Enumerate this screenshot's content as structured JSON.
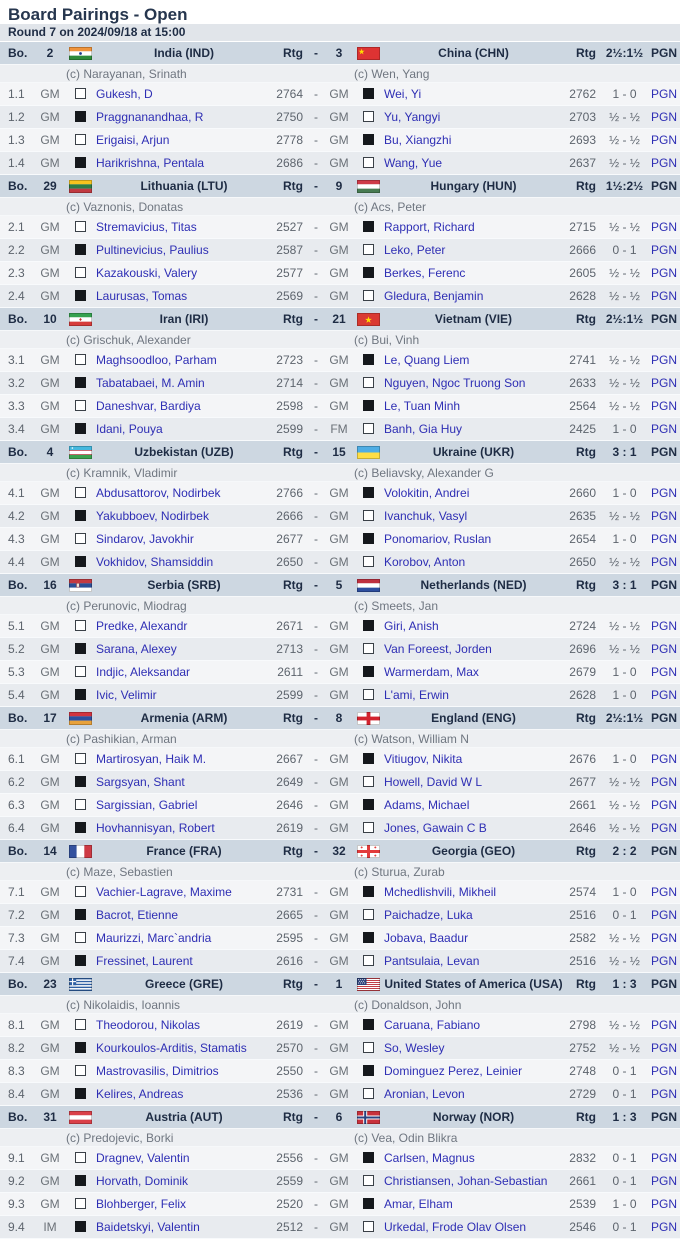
{
  "page": {
    "title": "Board Pairings - Open",
    "round_info": "Round 7 on 2024/09/18 at 15:00"
  },
  "labels": {
    "bo": "Bo.",
    "rtg": "Rtg",
    "dash": "-",
    "pgn": "PGN"
  },
  "matches": [
    {
      "score": "2½:1½",
      "team1": {
        "seed": "2",
        "name": "India (IND)",
        "flag": "ind",
        "captain": "(c) Narayanan, Srinath"
      },
      "team2": {
        "seed": "3",
        "name": "China (CHN)",
        "flag": "chn",
        "captain": "(c) Wen, Yang"
      },
      "boards": [
        {
          "no": "1.1",
          "t1": "GM",
          "color1": "white",
          "p1": "Gukesh, D",
          "r1": "2764",
          "t2": "GM",
          "color2": "black",
          "p2": "Wei, Yi",
          "r2": "2762",
          "result": "1 - 0",
          "pgn": "PGN"
        },
        {
          "no": "1.2",
          "t1": "GM",
          "color1": "black",
          "p1": "Praggnanandhaa, R",
          "r1": "2750",
          "t2": "GM",
          "color2": "white",
          "p2": "Yu, Yangyi",
          "r2": "2703",
          "result": "½ - ½",
          "pgn": "PGN"
        },
        {
          "no": "1.3",
          "t1": "GM",
          "color1": "white",
          "p1": "Erigaisi, Arjun",
          "r1": "2778",
          "t2": "GM",
          "color2": "black",
          "p2": "Bu, Xiangzhi",
          "r2": "2693",
          "result": "½ - ½",
          "pgn": "PGN"
        },
        {
          "no": "1.4",
          "t1": "GM",
          "color1": "black",
          "p1": "Harikrishna, Pentala",
          "r1": "2686",
          "t2": "GM",
          "color2": "white",
          "p2": "Wang, Yue",
          "r2": "2637",
          "result": "½ - ½",
          "pgn": "PGN"
        }
      ]
    },
    {
      "score": "1½:2½",
      "team1": {
        "seed": "29",
        "name": "Lithuania (LTU)",
        "flag": "ltu",
        "captain": "(c) Vaznonis, Donatas"
      },
      "team2": {
        "seed": "9",
        "name": "Hungary (HUN)",
        "flag": "hun",
        "captain": "(c) Acs, Peter"
      },
      "boards": [
        {
          "no": "2.1",
          "t1": "GM",
          "color1": "white",
          "p1": "Stremavicius, Titas",
          "r1": "2527",
          "t2": "GM",
          "color2": "black",
          "p2": "Rapport, Richard",
          "r2": "2715",
          "result": "½ - ½",
          "pgn": "PGN"
        },
        {
          "no": "2.2",
          "t1": "GM",
          "color1": "black",
          "p1": "Pultinevicius, Paulius",
          "r1": "2587",
          "t2": "GM",
          "color2": "white",
          "p2": "Leko, Peter",
          "r2": "2666",
          "result": "0 - 1",
          "pgn": "PGN"
        },
        {
          "no": "2.3",
          "t1": "GM",
          "color1": "white",
          "p1": "Kazakouski, Valery",
          "r1": "2577",
          "t2": "GM",
          "color2": "black",
          "p2": "Berkes, Ferenc",
          "r2": "2605",
          "result": "½ - ½",
          "pgn": "PGN"
        },
        {
          "no": "2.4",
          "t1": "GM",
          "color1": "black",
          "p1": "Laurusas, Tomas",
          "r1": "2569",
          "t2": "GM",
          "color2": "white",
          "p2": "Gledura, Benjamin",
          "r2": "2628",
          "result": "½ - ½",
          "pgn": "PGN"
        }
      ]
    },
    {
      "score": "2½:1½",
      "team1": {
        "seed": "10",
        "name": "Iran (IRI)",
        "flag": "iri",
        "captain": "(c) Grischuk, Alexander"
      },
      "team2": {
        "seed": "21",
        "name": "Vietnam (VIE)",
        "flag": "vie",
        "captain": "(c) Bui, Vinh"
      },
      "boards": [
        {
          "no": "3.1",
          "t1": "GM",
          "color1": "white",
          "p1": "Maghsoodloo, Parham",
          "r1": "2723",
          "t2": "GM",
          "color2": "black",
          "p2": "Le, Quang Liem",
          "r2": "2741",
          "result": "½ - ½",
          "pgn": "PGN"
        },
        {
          "no": "3.2",
          "t1": "GM",
          "color1": "black",
          "p1": "Tabatabaei, M. Amin",
          "r1": "2714",
          "t2": "GM",
          "color2": "white",
          "p2": "Nguyen, Ngoc Truong Son",
          "r2": "2633",
          "result": "½ - ½",
          "pgn": "PGN"
        },
        {
          "no": "3.3",
          "t1": "GM",
          "color1": "white",
          "p1": "Daneshvar, Bardiya",
          "r1": "2598",
          "t2": "GM",
          "color2": "black",
          "p2": "Le, Tuan Minh",
          "r2": "2564",
          "result": "½ - ½",
          "pgn": "PGN"
        },
        {
          "no": "3.4",
          "t1": "GM",
          "color1": "black",
          "p1": "Idani, Pouya",
          "r1": "2599",
          "t2": "FM",
          "color2": "white",
          "p2": "Banh, Gia Huy",
          "r2": "2425",
          "result": "1 - 0",
          "pgn": "PGN"
        }
      ]
    },
    {
      "score": "3 : 1",
      "team1": {
        "seed": "4",
        "name": "Uzbekistan (UZB)",
        "flag": "uzb",
        "captain": "(c) Kramnik, Vladimir"
      },
      "team2": {
        "seed": "15",
        "name": "Ukraine (UKR)",
        "flag": "ukr",
        "captain": "(c) Beliavsky, Alexander G"
      },
      "boards": [
        {
          "no": "4.1",
          "t1": "GM",
          "color1": "white",
          "p1": "Abdusattorov, Nodirbek",
          "r1": "2766",
          "t2": "GM",
          "color2": "black",
          "p2": "Volokitin, Andrei",
          "r2": "2660",
          "result": "1 - 0",
          "pgn": "PGN"
        },
        {
          "no": "4.2",
          "t1": "GM",
          "color1": "black",
          "p1": "Yakubboev, Nodirbek",
          "r1": "2666",
          "t2": "GM",
          "color2": "white",
          "p2": "Ivanchuk, Vasyl",
          "r2": "2635",
          "result": "½ - ½",
          "pgn": "PGN"
        },
        {
          "no": "4.3",
          "t1": "GM",
          "color1": "white",
          "p1": "Sindarov, Javokhir",
          "r1": "2677",
          "t2": "GM",
          "color2": "black",
          "p2": "Ponomariov, Ruslan",
          "r2": "2654",
          "result": "1 - 0",
          "pgn": "PGN"
        },
        {
          "no": "4.4",
          "t1": "GM",
          "color1": "black",
          "p1": "Vokhidov, Shamsiddin",
          "r1": "2650",
          "t2": "GM",
          "color2": "white",
          "p2": "Korobov, Anton",
          "r2": "2650",
          "result": "½ - ½",
          "pgn": "PGN"
        }
      ]
    },
    {
      "score": "3 : 1",
      "team1": {
        "seed": "16",
        "name": "Serbia (SRB)",
        "flag": "srb",
        "captain": "(c) Perunovic, Miodrag"
      },
      "team2": {
        "seed": "5",
        "name": "Netherlands (NED)",
        "flag": "ned",
        "captain": "(c) Smeets, Jan"
      },
      "boards": [
        {
          "no": "5.1",
          "t1": "GM",
          "color1": "white",
          "p1": "Predke, Alexandr",
          "r1": "2671",
          "t2": "GM",
          "color2": "black",
          "p2": "Giri, Anish",
          "r2": "2724",
          "result": "½ - ½",
          "pgn": "PGN"
        },
        {
          "no": "5.2",
          "t1": "GM",
          "color1": "black",
          "p1": "Sarana, Alexey",
          "r1": "2713",
          "t2": "GM",
          "color2": "white",
          "p2": "Van Foreest, Jorden",
          "r2": "2696",
          "result": "½ - ½",
          "pgn": "PGN"
        },
        {
          "no": "5.3",
          "t1": "GM",
          "color1": "white",
          "p1": "Indjic, Aleksandar",
          "r1": "2611",
          "t2": "GM",
          "color2": "black",
          "p2": "Warmerdam, Max",
          "r2": "2679",
          "result": "1 - 0",
          "pgn": "PGN"
        },
        {
          "no": "5.4",
          "t1": "GM",
          "color1": "black",
          "p1": "Ivic, Velimir",
          "r1": "2599",
          "t2": "GM",
          "color2": "white",
          "p2": "L'ami, Erwin",
          "r2": "2628",
          "result": "1 - 0",
          "pgn": "PGN"
        }
      ]
    },
    {
      "score": "2½:1½",
      "team1": {
        "seed": "17",
        "name": "Armenia (ARM)",
        "flag": "arm",
        "captain": "(c) Pashikian, Arman"
      },
      "team2": {
        "seed": "8",
        "name": "England (ENG)",
        "flag": "eng",
        "captain": "(c) Watson, William N"
      },
      "boards": [
        {
          "no": "6.1",
          "t1": "GM",
          "color1": "white",
          "p1": "Martirosyan, Haik M.",
          "r1": "2667",
          "t2": "GM",
          "color2": "black",
          "p2": "Vitiugov, Nikita",
          "r2": "2676",
          "result": "1 - 0",
          "pgn": "PGN"
        },
        {
          "no": "6.2",
          "t1": "GM",
          "color1": "black",
          "p1": "Sargsyan, Shant",
          "r1": "2649",
          "t2": "GM",
          "color2": "white",
          "p2": "Howell, David W L",
          "r2": "2677",
          "result": "½ - ½",
          "pgn": "PGN"
        },
        {
          "no": "6.3",
          "t1": "GM",
          "color1": "white",
          "p1": "Sargissian, Gabriel",
          "r1": "2646",
          "t2": "GM",
          "color2": "black",
          "p2": "Adams, Michael",
          "r2": "2661",
          "result": "½ - ½",
          "pgn": "PGN"
        },
        {
          "no": "6.4",
          "t1": "GM",
          "color1": "black",
          "p1": "Hovhannisyan, Robert",
          "r1": "2619",
          "t2": "GM",
          "color2": "white",
          "p2": "Jones, Gawain C B",
          "r2": "2646",
          "result": "½ - ½",
          "pgn": "PGN"
        }
      ]
    },
    {
      "score": "2 : 2",
      "team1": {
        "seed": "14",
        "name": "France (FRA)",
        "flag": "fra",
        "captain": "(c) Maze, Sebastien"
      },
      "team2": {
        "seed": "32",
        "name": "Georgia (GEO)",
        "flag": "geo",
        "captain": "(c) Sturua, Zurab"
      },
      "boards": [
        {
          "no": "7.1",
          "t1": "GM",
          "color1": "white",
          "p1": "Vachier-Lagrave, Maxime",
          "r1": "2731",
          "t2": "GM",
          "color2": "black",
          "p2": "Mchedlishvili, Mikheil",
          "r2": "2574",
          "result": "1 - 0",
          "pgn": "PGN"
        },
        {
          "no": "7.2",
          "t1": "GM",
          "color1": "black",
          "p1": "Bacrot, Etienne",
          "r1": "2665",
          "t2": "GM",
          "color2": "white",
          "p2": "Paichadze, Luka",
          "r2": "2516",
          "result": "0 - 1",
          "pgn": "PGN"
        },
        {
          "no": "7.3",
          "t1": "GM",
          "color1": "white",
          "p1": "Maurizzi, Marc`andria",
          "r1": "2595",
          "t2": "GM",
          "color2": "black",
          "p2": "Jobava, Baadur",
          "r2": "2582",
          "result": "½ - ½",
          "pgn": "PGN"
        },
        {
          "no": "7.4",
          "t1": "GM",
          "color1": "black",
          "p1": "Fressinet, Laurent",
          "r1": "2616",
          "t2": "GM",
          "color2": "white",
          "p2": "Pantsulaia, Levan",
          "r2": "2516",
          "result": "½ - ½",
          "pgn": "PGN"
        }
      ]
    },
    {
      "score": "1 : 3",
      "team1": {
        "seed": "23",
        "name": "Greece (GRE)",
        "flag": "gre",
        "captain": "(c) Nikolaidis, Ioannis"
      },
      "team2": {
        "seed": "1",
        "name": "United States of America (USA)",
        "flag": "usa",
        "captain": "(c) Donaldson, John"
      },
      "boards": [
        {
          "no": "8.1",
          "t1": "GM",
          "color1": "white",
          "p1": "Theodorou, Nikolas",
          "r1": "2619",
          "t2": "GM",
          "color2": "black",
          "p2": "Caruana, Fabiano",
          "r2": "2798",
          "result": "½ - ½",
          "pgn": "PGN"
        },
        {
          "no": "8.2",
          "t1": "GM",
          "color1": "black",
          "p1": "Kourkoulos-Arditis, Stamatis",
          "r1": "2570",
          "t2": "GM",
          "color2": "white",
          "p2": "So, Wesley",
          "r2": "2752",
          "result": "½ - ½",
          "pgn": "PGN"
        },
        {
          "no": "8.3",
          "t1": "GM",
          "color1": "white",
          "p1": "Mastrovasilis, Dimitrios",
          "r1": "2550",
          "t2": "GM",
          "color2": "black",
          "p2": "Dominguez Perez, Leinier",
          "r2": "2748",
          "result": "0 - 1",
          "pgn": "PGN"
        },
        {
          "no": "8.4",
          "t1": "GM",
          "color1": "black",
          "p1": "Kelires, Andreas",
          "r1": "2536",
          "t2": "GM",
          "color2": "white",
          "p2": "Aronian, Levon",
          "r2": "2729",
          "result": "0 - 1",
          "pgn": "PGN"
        }
      ]
    },
    {
      "score": "1 : 3",
      "team1": {
        "seed": "31",
        "name": "Austria (AUT)",
        "flag": "aut",
        "captain": "(c) Predojevic, Borki"
      },
      "team2": {
        "seed": "6",
        "name": "Norway (NOR)",
        "flag": "nor",
        "captain": "(c) Vea, Odin Blikra"
      },
      "boards": [
        {
          "no": "9.1",
          "t1": "GM",
          "color1": "white",
          "p1": "Dragnev, Valentin",
          "r1": "2556",
          "t2": "GM",
          "color2": "black",
          "p2": "Carlsen, Magnus",
          "r2": "2832",
          "result": "0 - 1",
          "pgn": "PGN"
        },
        {
          "no": "9.2",
          "t1": "GM",
          "color1": "black",
          "p1": "Horvath, Dominik",
          "r1": "2559",
          "t2": "GM",
          "color2": "white",
          "p2": "Christiansen, Johan-Sebastian",
          "r2": "2661",
          "result": "0 - 1",
          "pgn": "PGN"
        },
        {
          "no": "9.3",
          "t1": "GM",
          "color1": "white",
          "p1": "Blohberger, Felix",
          "r1": "2520",
          "t2": "GM",
          "color2": "black",
          "p2": "Amar, Elham",
          "r2": "2539",
          "result": "1 - 0",
          "pgn": "PGN"
        },
        {
          "no": "9.4",
          "t1": "IM",
          "color1": "black",
          "p1": "Baidetskyi, Valentin",
          "r1": "2512",
          "t2": "GM",
          "color2": "white",
          "p2": "Urkedal, Frode Olav Olsen",
          "r2": "2546",
          "result": "0 - 1",
          "pgn": "PGN"
        }
      ]
    }
  ]
}
